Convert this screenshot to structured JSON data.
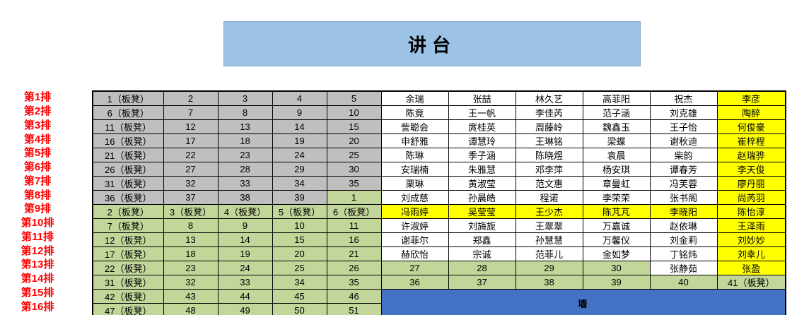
{
  "podium": {
    "label": "讲台"
  },
  "wall": {
    "label": "墙"
  },
  "colors": {
    "podium_bg": "#9CC2E5",
    "seat_gray": "#BFBFBF",
    "seat_green": "#C2D69A",
    "highlight_yellow": "#FFFF00",
    "wall_blue": "#4472C4",
    "row_label_red": "#FF0000"
  },
  "row_labels": [
    "第1排",
    "第2排",
    "第3排",
    "第4排",
    "第5排",
    "第6排",
    "第7排",
    "第8排",
    "第9排",
    "第10排",
    "第11排",
    "第12排",
    "第13排",
    "第14排",
    "第15排",
    "第16排"
  ],
  "grid": {
    "rows": [
      {
        "cells": [
          {
            "t": "1（板凳）",
            "bg": "gray"
          },
          {
            "t": "2",
            "bg": "gray"
          },
          {
            "t": "3",
            "bg": "gray"
          },
          {
            "t": "4",
            "bg": "gray"
          },
          {
            "t": "5",
            "bg": "gray"
          },
          {
            "t": "余瑞",
            "bg": "white"
          },
          {
            "t": "张喆",
            "bg": "white"
          },
          {
            "t": "林久艺",
            "bg": "white"
          },
          {
            "t": "高菲阳",
            "bg": "white"
          },
          {
            "t": "祝杰",
            "bg": "white"
          },
          {
            "t": "李彦",
            "bg": "yellow"
          }
        ]
      },
      {
        "cells": [
          {
            "t": "6（板凳）",
            "bg": "gray"
          },
          {
            "t": "7",
            "bg": "gray"
          },
          {
            "t": "8",
            "bg": "gray"
          },
          {
            "t": "9",
            "bg": "gray"
          },
          {
            "t": "10",
            "bg": "gray"
          },
          {
            "t": "陈竟",
            "bg": "white"
          },
          {
            "t": "王一帆",
            "bg": "white"
          },
          {
            "t": "李佳芮",
            "bg": "white"
          },
          {
            "t": "范子涵",
            "bg": "white"
          },
          {
            "t": "刘克雄",
            "bg": "white"
          },
          {
            "t": "陶醉",
            "bg": "yellow"
          }
        ]
      },
      {
        "cells": [
          {
            "t": "11（板凳）",
            "bg": "gray"
          },
          {
            "t": "12",
            "bg": "gray"
          },
          {
            "t": "13",
            "bg": "gray"
          },
          {
            "t": "14",
            "bg": "gray"
          },
          {
            "t": "15",
            "bg": "gray"
          },
          {
            "t": "訾聪会",
            "bg": "white"
          },
          {
            "t": "庹桂英",
            "bg": "white"
          },
          {
            "t": "周藤岭",
            "bg": "white"
          },
          {
            "t": "魏鑫玉",
            "bg": "white"
          },
          {
            "t": "王子怡",
            "bg": "white"
          },
          {
            "t": "何俊豪",
            "bg": "yellow"
          }
        ]
      },
      {
        "cells": [
          {
            "t": "16（板凳）",
            "bg": "gray"
          },
          {
            "t": "17",
            "bg": "gray"
          },
          {
            "t": "18",
            "bg": "gray"
          },
          {
            "t": "19",
            "bg": "gray"
          },
          {
            "t": "20",
            "bg": "gray"
          },
          {
            "t": "申舒雅",
            "bg": "white"
          },
          {
            "t": "谭慧玲",
            "bg": "white"
          },
          {
            "t": "王琳铭",
            "bg": "white"
          },
          {
            "t": "梁蝶",
            "bg": "white"
          },
          {
            "t": "谢秋迪",
            "bg": "white"
          },
          {
            "t": "崔梓程",
            "bg": "yellow"
          }
        ]
      },
      {
        "cells": [
          {
            "t": "21（板凳）",
            "bg": "gray"
          },
          {
            "t": "22",
            "bg": "gray"
          },
          {
            "t": "23",
            "bg": "gray"
          },
          {
            "t": "24",
            "bg": "gray"
          },
          {
            "t": "25",
            "bg": "gray"
          },
          {
            "t": "陈琳",
            "bg": "white"
          },
          {
            "t": "季子涵",
            "bg": "white"
          },
          {
            "t": "陈晓煜",
            "bg": "white"
          },
          {
            "t": "袁晨",
            "bg": "white"
          },
          {
            "t": "柴韵",
            "bg": "white"
          },
          {
            "t": "赵瑞骅",
            "bg": "yellow"
          }
        ]
      },
      {
        "cells": [
          {
            "t": "26（板凳）",
            "bg": "gray"
          },
          {
            "t": "27",
            "bg": "gray"
          },
          {
            "t": "28",
            "bg": "gray"
          },
          {
            "t": "29",
            "bg": "gray"
          },
          {
            "t": "30",
            "bg": "gray"
          },
          {
            "t": "安瑞楠",
            "bg": "white"
          },
          {
            "t": "朱雅慧",
            "bg": "white"
          },
          {
            "t": "邓李萍",
            "bg": "white"
          },
          {
            "t": "杨安琪",
            "bg": "white"
          },
          {
            "t": "谭春芳",
            "bg": "white"
          },
          {
            "t": "李天俊",
            "bg": "yellow"
          }
        ]
      },
      {
        "cells": [
          {
            "t": "31（板凳）",
            "bg": "gray"
          },
          {
            "t": "32",
            "bg": "gray"
          },
          {
            "t": "33",
            "bg": "gray"
          },
          {
            "t": "34",
            "bg": "gray"
          },
          {
            "t": "35",
            "bg": "gray"
          },
          {
            "t": "栗琳",
            "bg": "white"
          },
          {
            "t": "黄淑莹",
            "bg": "white"
          },
          {
            "t": "范文惠",
            "bg": "white"
          },
          {
            "t": "章曼虹",
            "bg": "white"
          },
          {
            "t": "冯芙蓉",
            "bg": "white"
          },
          {
            "t": "廖丹丽",
            "bg": "yellow"
          }
        ]
      },
      {
        "cells": [
          {
            "t": "36（板凳）",
            "bg": "gray"
          },
          {
            "t": "37",
            "bg": "gray"
          },
          {
            "t": "38",
            "bg": "gray"
          },
          {
            "t": "39",
            "bg": "gray"
          },
          {
            "t": "1",
            "bg": "green"
          },
          {
            "t": "刘成慈",
            "bg": "white"
          },
          {
            "t": "孙晨皓",
            "bg": "white"
          },
          {
            "t": "程诺",
            "bg": "white"
          },
          {
            "t": "李荣荣",
            "bg": "white"
          },
          {
            "t": "张书阁",
            "bg": "white"
          },
          {
            "t": "尚芮羽",
            "bg": "yellow"
          }
        ]
      },
      {
        "cells": [
          {
            "t": "2（板凳）",
            "bg": "green"
          },
          {
            "t": "3（板凳）",
            "bg": "green"
          },
          {
            "t": "4（板凳）",
            "bg": "green"
          },
          {
            "t": "5（板凳）",
            "bg": "green"
          },
          {
            "t": "6（板凳）",
            "bg": "green"
          },
          {
            "t": "冯雨婷",
            "bg": "yellow"
          },
          {
            "t": "吴莹莹",
            "bg": "yellow"
          },
          {
            "t": "王少杰",
            "bg": "yellow"
          },
          {
            "t": "陈芃芃",
            "bg": "yellow"
          },
          {
            "t": "李晓阳",
            "bg": "yellow"
          },
          {
            "t": "陈怡淳",
            "bg": "yellow"
          }
        ]
      },
      {
        "cells": [
          {
            "t": "7（板凳）",
            "bg": "green"
          },
          {
            "t": "8",
            "bg": "green"
          },
          {
            "t": "9",
            "bg": "green"
          },
          {
            "t": "10",
            "bg": "green"
          },
          {
            "t": "11",
            "bg": "green"
          },
          {
            "t": "许淑婷",
            "bg": "white"
          },
          {
            "t": "刘旖旎",
            "bg": "white"
          },
          {
            "t": "王翠翠",
            "bg": "white"
          },
          {
            "t": "万嘉诚",
            "bg": "white"
          },
          {
            "t": "赵依琳",
            "bg": "white"
          },
          {
            "t": "王泽雨",
            "bg": "yellow"
          }
        ]
      },
      {
        "cells": [
          {
            "t": "12（板凳）",
            "bg": "green"
          },
          {
            "t": "13",
            "bg": "green"
          },
          {
            "t": "14",
            "bg": "green"
          },
          {
            "t": "15",
            "bg": "green"
          },
          {
            "t": "16",
            "bg": "green"
          },
          {
            "t": "谢菲尔",
            "bg": "white"
          },
          {
            "t": "郑鑫",
            "bg": "white"
          },
          {
            "t": "孙慧慧",
            "bg": "white"
          },
          {
            "t": "万馨仪",
            "bg": "white"
          },
          {
            "t": "刘金莉",
            "bg": "white"
          },
          {
            "t": "刘妙妙",
            "bg": "yellow"
          }
        ]
      },
      {
        "cells": [
          {
            "t": "17（板凳）",
            "bg": "green"
          },
          {
            "t": "18",
            "bg": "green"
          },
          {
            "t": "19",
            "bg": "green"
          },
          {
            "t": "20",
            "bg": "green"
          },
          {
            "t": "21",
            "bg": "green"
          },
          {
            "t": "赫欣怡",
            "bg": "white"
          },
          {
            "t": "宗诚",
            "bg": "white"
          },
          {
            "t": "范菲儿",
            "bg": "white"
          },
          {
            "t": "金如梦",
            "bg": "white"
          },
          {
            "t": "丁铭炜",
            "bg": "white"
          },
          {
            "t": "刘幸儿",
            "bg": "yellow"
          }
        ]
      },
      {
        "cells": [
          {
            "t": "22（板凳）",
            "bg": "green"
          },
          {
            "t": "23",
            "bg": "green"
          },
          {
            "t": "24",
            "bg": "green"
          },
          {
            "t": "25",
            "bg": "green"
          },
          {
            "t": "26",
            "bg": "green"
          },
          {
            "t": "27",
            "bg": "green"
          },
          {
            "t": "28",
            "bg": "green"
          },
          {
            "t": "29",
            "bg": "green"
          },
          {
            "t": "30",
            "bg": "green"
          },
          {
            "t": "张静茹",
            "bg": "white"
          },
          {
            "t": "张盈",
            "bg": "yellow"
          }
        ]
      },
      {
        "cells": [
          {
            "t": "31（板凳）",
            "bg": "green"
          },
          {
            "t": "32",
            "bg": "green"
          },
          {
            "t": "33",
            "bg": "green"
          },
          {
            "t": "34",
            "bg": "green"
          },
          {
            "t": "35",
            "bg": "green"
          },
          {
            "t": "36",
            "bg": "green"
          },
          {
            "t": "37",
            "bg": "green"
          },
          {
            "t": "38",
            "bg": "green"
          },
          {
            "t": "39",
            "bg": "green"
          },
          {
            "t": "40",
            "bg": "green"
          },
          {
            "t": "41（板凳）",
            "bg": "green"
          }
        ]
      },
      {
        "cells": [
          {
            "t": "42（板凳）",
            "bg": "green"
          },
          {
            "t": "43",
            "bg": "green"
          },
          {
            "t": "44",
            "bg": "green"
          },
          {
            "t": "45",
            "bg": "green"
          },
          {
            "t": "46",
            "bg": "green"
          },
          {
            "t": "墙",
            "bg": "wall",
            "colspan": 6,
            "rowspan": 2
          }
        ]
      },
      {
        "cells": [
          {
            "t": "47（板凳）",
            "bg": "green"
          },
          {
            "t": "48",
            "bg": "green"
          },
          {
            "t": "49",
            "bg": "green"
          },
          {
            "t": "50",
            "bg": "green"
          },
          {
            "t": "51",
            "bg": "green"
          }
        ]
      }
    ]
  }
}
